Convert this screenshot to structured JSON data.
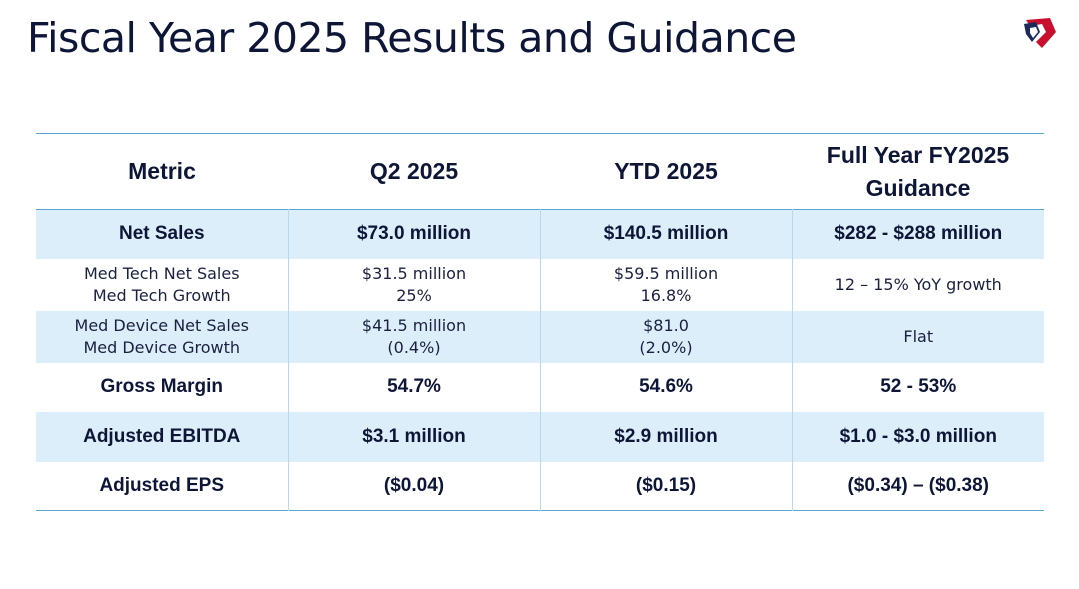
{
  "slide": {
    "title": "Fiscal Year 2025 Results and Guidance"
  },
  "logo": {
    "icon": "company-logo-icon",
    "colors": [
      "#c8102e",
      "#1b2a5a"
    ]
  },
  "table": {
    "headers": {
      "metric": "Metric",
      "q2": "Q2 2025",
      "ytd": "YTD 2025",
      "guidance_line1": "Full Year FY2025",
      "guidance_line2": "Guidance"
    },
    "net_sales": {
      "metric": "Net Sales",
      "q2": "$73.0 million",
      "ytd": "$140.5 million",
      "guidance": "$282 - $288 million"
    },
    "med_tech": {
      "metric_line1": "Med Tech Net Sales",
      "metric_line2": "Med Tech Growth",
      "q2_line1": "$31.5 million",
      "q2_line2": "25%",
      "ytd_line1": "$59.5 million",
      "ytd_line2": "16.8%",
      "guidance": "12 – 15% YoY growth"
    },
    "med_device": {
      "metric_line1": "Med Device Net Sales",
      "metric_line2": "Med Device Growth",
      "q2_line1": "$41.5 million",
      "q2_line2": "(0.4%)",
      "ytd_line1": "$81.0",
      "ytd_line2": "(2.0%)",
      "guidance": "Flat"
    },
    "gross_margin": {
      "metric": "Gross Margin",
      "q2": "54.7%",
      "ytd": "54.6%",
      "guidance": "52 - 53%"
    },
    "adjusted_ebitda": {
      "metric": "Adjusted EBITDA",
      "q2": "$3.1 million",
      "ytd": "$2.9 million",
      "guidance": "$1.0 - $3.0 million"
    },
    "adjusted_eps": {
      "metric": "Adjusted EPS",
      "q2": "($0.04)",
      "ytd": "($0.15)",
      "guidance": "($0.34) – ($0.38)"
    }
  },
  "colors": {
    "title": "#0e1638",
    "shade": "#dceef9",
    "rule": "#5aa6d0"
  }
}
